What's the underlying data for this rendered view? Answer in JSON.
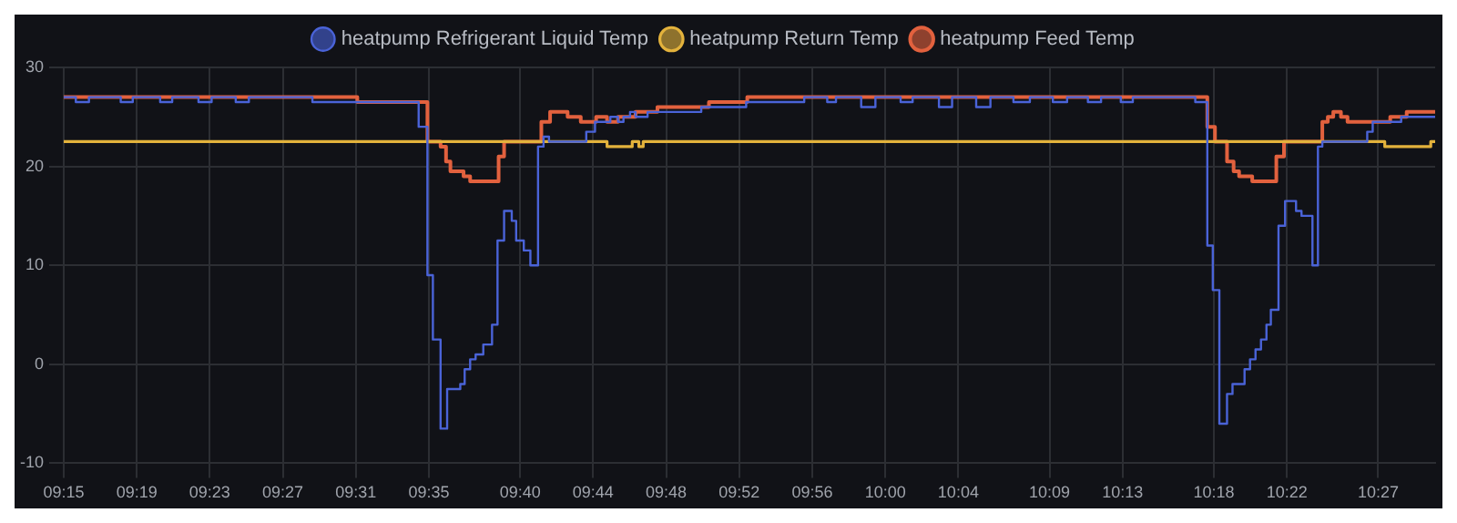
{
  "chart_data": {
    "type": "step",
    "xlim": [
      9.25,
      10.502
    ],
    "ylim": [
      -10,
      30
    ],
    "yticks": [
      -10,
      0,
      10,
      20,
      30
    ],
    "xticks": [
      {
        "value": 9.25,
        "label": "09:15"
      },
      {
        "value": 9.3167,
        "label": "09:19"
      },
      {
        "value": 9.3833,
        "label": "09:23"
      },
      {
        "value": 9.45,
        "label": "09:27"
      },
      {
        "value": 9.5167,
        "label": "09:31"
      },
      {
        "value": 9.5833,
        "label": "09:35"
      },
      {
        "value": 9.6667,
        "label": "09:40"
      },
      {
        "value": 9.7333,
        "label": "09:44"
      },
      {
        "value": 9.8,
        "label": "09:48"
      },
      {
        "value": 9.8667,
        "label": "09:52"
      },
      {
        "value": 9.9333,
        "label": "09:56"
      },
      {
        "value": 10,
        "label": "10:00"
      },
      {
        "value": 10.0667,
        "label": "10:04"
      },
      {
        "value": 10.15,
        "label": "10:09"
      },
      {
        "value": 10.2167,
        "label": "10:13"
      },
      {
        "value": 10.3,
        "label": "10:18"
      },
      {
        "value": 10.3667,
        "label": "10:22"
      },
      {
        "value": 10.45,
        "label": "10:27"
      }
    ],
    "grid": true,
    "legend": "top",
    "marker": "none",
    "line_style": "solid",
    "series": [
      {
        "name": "heatpump Refrigerant Liquid Temp",
        "color": "#4a63d8",
        "x": [
          9.25,
          9.261,
          9.273,
          9.302,
          9.313,
          9.338,
          9.349,
          9.373,
          9.385,
          9.407,
          9.419,
          9.477,
          9.574,
          9.582,
          9.587,
          9.594,
          9.6,
          9.612,
          9.616,
          9.621,
          9.626,
          9.633,
          9.641,
          9.646,
          9.652,
          9.659,
          9.663,
          9.67,
          9.676,
          9.683,
          9.688,
          9.693,
          9.727,
          9.735,
          9.749,
          9.756,
          9.761,
          9.767,
          9.772,
          9.783,
          9.832,
          9.873,
          9.926,
          9.947,
          9.955,
          9.978,
          9.991,
          10.014,
          10.025,
          10.049,
          10.061,
          10.083,
          10.096,
          10.117,
          10.132,
          10.153,
          10.166,
          10.185,
          10.197,
          10.215,
          10.226,
          10.283,
          10.294,
          10.299,
          10.305,
          10.312,
          10.317,
          10.328,
          10.333,
          10.338,
          10.343,
          10.348,
          10.352,
          10.359,
          10.365,
          10.375,
          10.38,
          10.39,
          10.395,
          10.399,
          10.44,
          10.445,
          10.471,
          10.502
        ],
        "values": [
          27,
          26.5,
          27,
          26.5,
          27,
          26.5,
          27,
          26.5,
          27,
          26.5,
          27,
          26.5,
          24,
          9,
          2.5,
          -6.5,
          -2.5,
          -2,
          -0.5,
          0.5,
          1,
          2,
          4,
          12.5,
          15.5,
          14.5,
          12.5,
          11.5,
          10,
          22,
          23,
          22.5,
          23.5,
          24.5,
          25,
          24.5,
          25,
          25.5,
          25,
          25.5,
          26,
          26.5,
          27,
          26.5,
          27,
          26,
          27,
          26.5,
          27,
          26,
          27,
          26,
          27,
          26.5,
          27,
          26.5,
          27,
          26.5,
          27,
          26.5,
          27,
          26.5,
          12,
          7.5,
          -6,
          -3,
          -2,
          -0.5,
          0.5,
          1.5,
          2.5,
          4,
          5.5,
          14,
          16.5,
          15.5,
          15,
          10,
          22,
          22.5,
          23.5,
          24.5,
          25,
          25
        ]
      },
      {
        "name": "heatpump Return Temp",
        "color": "#e3b23c",
        "x": [
          9.25,
          9.746,
          9.769,
          9.775,
          9.779,
          10.456,
          10.498,
          10.502
        ],
        "values": [
          22.5,
          22,
          22.5,
          22,
          22.5,
          22,
          22.5,
          22.5
        ]
      },
      {
        "name": "heatpump Feed Temp",
        "color": "#e2613e",
        "x": [
          9.25,
          9.518,
          9.582,
          9.594,
          9.599,
          9.603,
          9.615,
          9.621,
          9.647,
          9.652,
          9.686,
          9.694,
          9.71,
          9.722,
          9.736,
          9.746,
          9.756,
          9.772,
          9.792,
          9.839,
          9.874,
          10.294,
          10.301,
          10.312,
          10.318,
          10.323,
          10.335,
          10.357,
          10.364,
          10.399,
          10.404,
          10.409,
          10.416,
          10.422,
          10.461,
          10.476,
          10.502
        ],
        "values": [
          27,
          26.5,
          22.5,
          22,
          20.5,
          19.5,
          19,
          18.5,
          21,
          22.5,
          24.5,
          25.5,
          25,
          24.5,
          25,
          24.5,
          25,
          25.5,
          26,
          26.5,
          27,
          24,
          22.5,
          20.5,
          19.5,
          19,
          18.5,
          21,
          22.5,
          24.5,
          25,
          25.5,
          25,
          24.5,
          25,
          25.5,
          25.5
        ]
      }
    ]
  }
}
